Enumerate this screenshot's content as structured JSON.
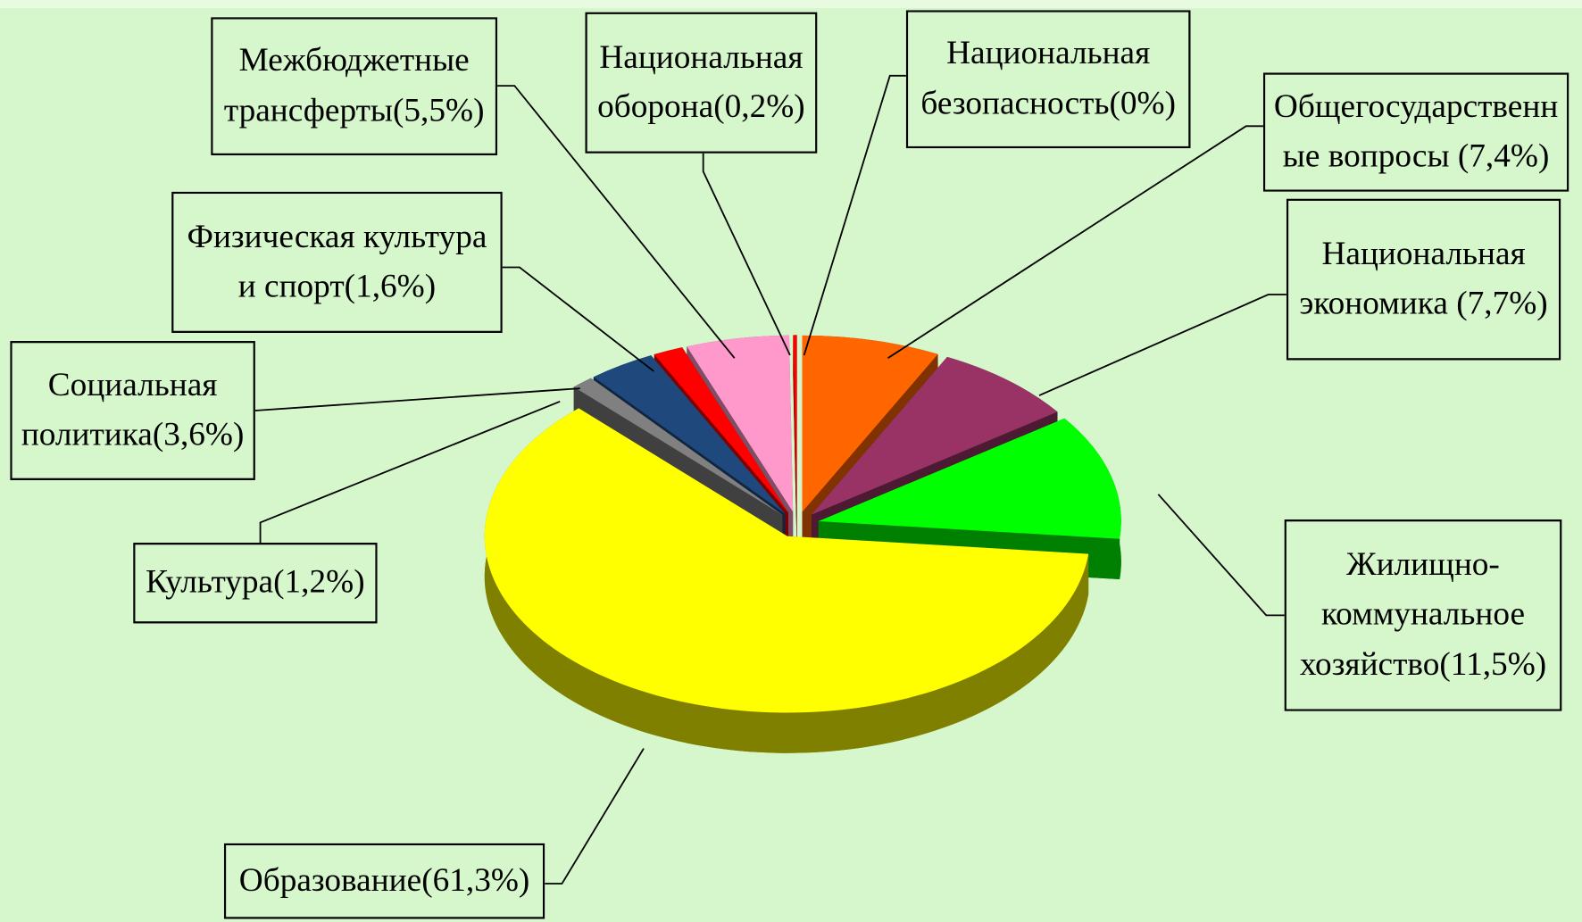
{
  "chart_data": {
    "type": "pie3d",
    "categories": [
      "Общегосударственные вопросы",
      "Национальная экономика",
      "Жилищно-коммунальное хозяйство",
      "Образование",
      "Культура",
      "Социальная политика",
      "Физическая культура и спорт",
      "Межбюджетные трансферты",
      "Национальная оборона",
      "Национальная безопасность"
    ],
    "values": [
      7.4,
      7.7,
      11.5,
      61.3,
      1.2,
      3.6,
      1.6,
      5.5,
      0.2,
      0
    ],
    "value_labels": [
      "(7,4%)",
      "(7,7%)",
      "(11,5%)",
      "(61,3%)",
      "(1,2%)",
      "(3,6%)",
      "(1,6%)",
      "(5,5%)",
      "(0,2%)",
      "(0%)"
    ],
    "colors": [
      "#ff6600",
      "#993366",
      "#00ff00",
      "#ffff00",
      "#808080",
      "#1f497d",
      "#ff0000",
      "#ff99cc",
      "#ff0000",
      "#ff0000"
    ]
  }
}
